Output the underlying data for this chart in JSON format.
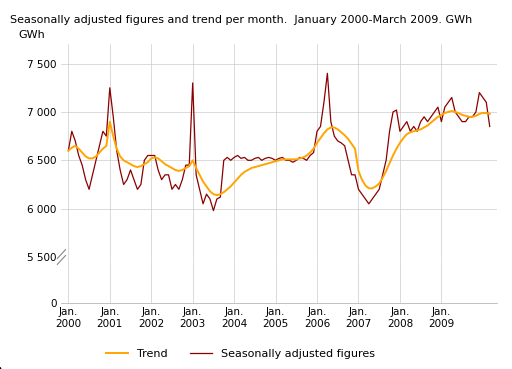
{
  "title": "Seasonally adjusted figures and trend per month.  January 2000-March 2009. GWh",
  "trend_color": "#FFA500",
  "seasonal_color": "#8B0000",
  "trend_label": "Trend",
  "seasonal_label": "Seasonally adjusted figures",
  "grid_color": "#cccccc",
  "seasonally_adjusted": [
    6600,
    6800,
    6700,
    6550,
    6450,
    6300,
    6200,
    6350,
    6500,
    6650,
    6800,
    6750,
    7250,
    6950,
    6600,
    6400,
    6250,
    6300,
    6400,
    6300,
    6200,
    6250,
    6500,
    6550,
    6550,
    6550,
    6400,
    6300,
    6350,
    6350,
    6200,
    6250,
    6200,
    6300,
    6450,
    6450,
    7300,
    6350,
    6200,
    6050,
    6150,
    6100,
    5980,
    6100,
    6120,
    6500,
    6530,
    6500,
    6530,
    6550,
    6520,
    6530,
    6500,
    6500,
    6520,
    6530,
    6500,
    6520,
    6530,
    6520,
    6500,
    6520,
    6530,
    6500,
    6500,
    6480,
    6500,
    6530,
    6520,
    6500,
    6550,
    6580,
    6800,
    6850,
    7100,
    7400,
    6900,
    6750,
    6700,
    6680,
    6650,
    6500,
    6350,
    6350,
    6200,
    6150,
    6100,
    6050,
    6100,
    6150,
    6200,
    6350,
    6500,
    6800,
    7000,
    7020,
    6800,
    6850,
    6900,
    6800,
    6850,
    6800,
    6900,
    6950,
    6900,
    6950,
    7000,
    7050,
    6900,
    7050,
    7100,
    7150,
    7000,
    6950,
    6900,
    6900,
    6950,
    6950,
    7000,
    7200,
    7150,
    7100,
    6850
  ],
  "trend": [
    6600,
    6630,
    6650,
    6620,
    6580,
    6540,
    6520,
    6520,
    6540,
    6580,
    6620,
    6650,
    6900,
    6750,
    6620,
    6540,
    6500,
    6480,
    6460,
    6440,
    6430,
    6440,
    6460,
    6480,
    6520,
    6530,
    6520,
    6490,
    6460,
    6440,
    6420,
    6400,
    6390,
    6400,
    6420,
    6440,
    6500,
    6420,
    6350,
    6280,
    6230,
    6180,
    6150,
    6140,
    6150,
    6170,
    6200,
    6230,
    6270,
    6310,
    6350,
    6380,
    6400,
    6420,
    6430,
    6440,
    6450,
    6460,
    6470,
    6480,
    6490,
    6500,
    6510,
    6510,
    6510,
    6510,
    6510,
    6520,
    6530,
    6550,
    6580,
    6620,
    6680,
    6730,
    6780,
    6820,
    6840,
    6840,
    6820,
    6790,
    6760,
    6720,
    6670,
    6620,
    6390,
    6300,
    6240,
    6210,
    6210,
    6230,
    6260,
    6320,
    6390,
    6470,
    6550,
    6620,
    6680,
    6730,
    6770,
    6790,
    6800,
    6810,
    6820,
    6840,
    6860,
    6890,
    6920,
    6950,
    6970,
    6990,
    7000,
    7010,
    7000,
    6990,
    6970,
    6960,
    6950,
    6950,
    6960,
    6980,
    6990,
    6990,
    6980
  ],
  "x_tick_positions": [
    0,
    12,
    24,
    36,
    48,
    60,
    72,
    84,
    96,
    108
  ],
  "x_tick_labels": [
    "Jan.\n2000",
    "Jan.\n2001",
    "Jan.\n2002",
    "Jan.\n2003",
    "Jan.\n2004",
    "Jan.\n2005",
    "Jan.\n2006",
    "Jan.\n2007",
    "Jan.\n2008",
    "Jan.\n2009"
  ],
  "ytick_vals": [
    0,
    5500,
    6000,
    6500,
    7000,
    7500
  ],
  "ytick_labels": [
    "0",
    "5 500",
    "6 000",
    "6 500",
    "7 000",
    "7 500"
  ]
}
